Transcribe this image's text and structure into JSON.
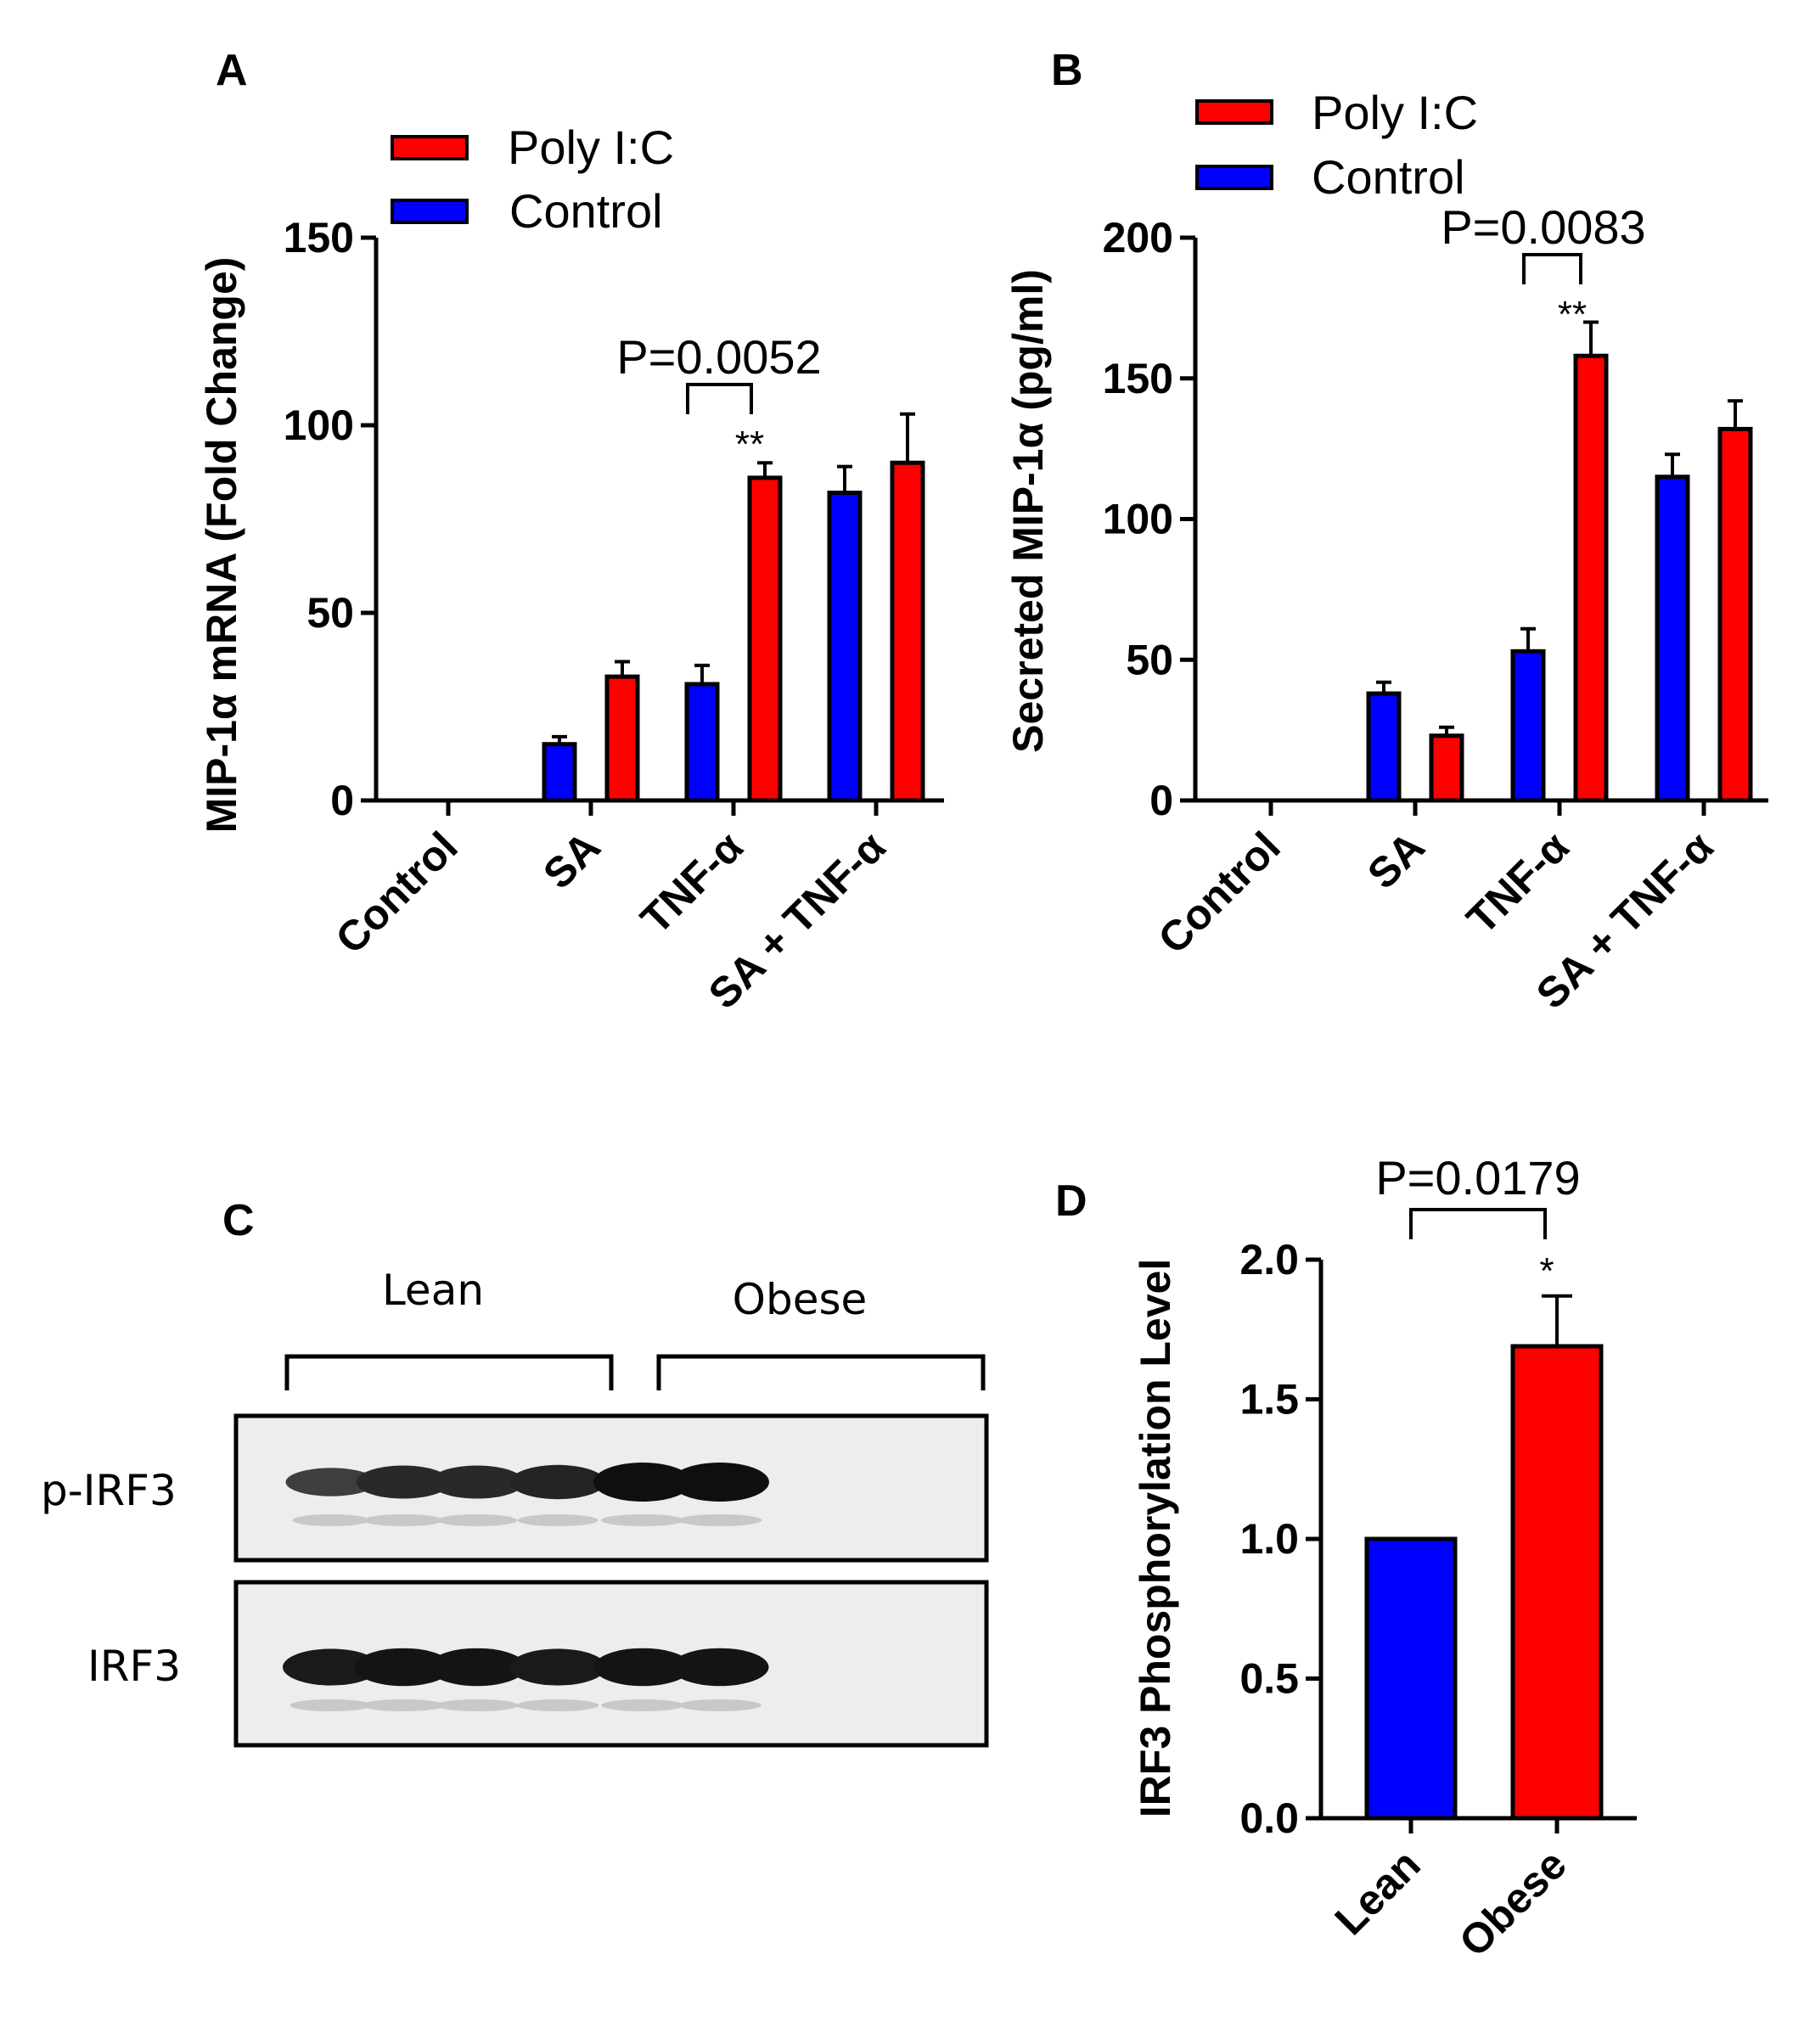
{
  "colors": {
    "poly_ic": "#ff0000",
    "control": "#0000ff",
    "axis": "#000000"
  },
  "panels": {
    "A": {
      "letter": "A"
    },
    "B": {
      "letter": "B"
    },
    "C": {
      "letter": "C"
    },
    "D": {
      "letter": "D"
    }
  },
  "chart_data": [
    {
      "panel": "A",
      "type": "bar",
      "ylabel": "MIP-1α  mRNA (Fold Change)",
      "ylim": [
        0,
        150
      ],
      "yticks": [
        0,
        50,
        100,
        150
      ],
      "categories": [
        "Control",
        "SA",
        "TNF-α",
        "SA + TNF-α"
      ],
      "legend": [
        "Poly I:C",
        "Control"
      ],
      "legend_position": "top",
      "series": [
        {
          "name": "Control",
          "color": "#0000ff",
          "values": [
            0,
            15,
            31,
            82
          ],
          "errors": [
            0,
            2,
            5,
            7
          ]
        },
        {
          "name": "Poly I:C",
          "color": "#ff0000",
          "values": [
            0,
            33,
            86,
            90
          ],
          "errors": [
            0,
            4,
            4,
            13
          ]
        }
      ],
      "significance": {
        "category": "TNF-α",
        "p_value": "P=0.0052",
        "stars": "**"
      }
    },
    {
      "panel": "B",
      "type": "bar",
      "ylabel": "Secreted MIP-1α  (pg/ml)",
      "ylim": [
        0,
        200
      ],
      "yticks": [
        0,
        50,
        100,
        150,
        200
      ],
      "categories": [
        "Control",
        "SA",
        "TNF-α",
        "SA + TNF-α"
      ],
      "legend": [
        "Poly I:C",
        "Control"
      ],
      "legend_position": "top",
      "series": [
        {
          "name": "Control",
          "color": "#0000ff",
          "values": [
            0,
            38,
            53,
            115
          ],
          "errors": [
            0,
            4,
            8,
            8
          ]
        },
        {
          "name": "Poly I:C",
          "color": "#ff0000",
          "values": [
            0,
            23,
            158,
            132
          ],
          "errors": [
            0,
            3,
            12,
            10
          ]
        }
      ],
      "significance": {
        "category": "TNF-α",
        "p_value": "P=0.0083",
        "stars": "**"
      }
    },
    {
      "panel": "D",
      "type": "bar",
      "ylabel": "IRF3 Phosphorylation Level",
      "ylim": [
        0,
        2.0
      ],
      "yticks": [
        "0.0",
        "0.5",
        "1.0",
        "1.5",
        "2.0"
      ],
      "categories": [
        "Lean",
        "Obese"
      ],
      "values": [
        1.0,
        1.69
      ],
      "errors": [
        0,
        0.18
      ],
      "colors": [
        "#0000ff",
        "#ff0000"
      ],
      "significance": {
        "p_value": "P=0.0179",
        "stars": "*"
      }
    }
  ],
  "blot": {
    "groups": [
      "Lean",
      "Obese"
    ],
    "rows": [
      "p-IRF3",
      "IRF3"
    ],
    "lanes": 6,
    "band_intensity": {
      "p-IRF3": [
        0.0,
        0.55,
        0.75,
        0.75,
        0.8,
        1.0,
        1.0
      ],
      "IRF3": [
        0.0,
        0.9,
        0.95,
        0.95,
        0.9,
        0.95,
        0.95
      ]
    }
  }
}
